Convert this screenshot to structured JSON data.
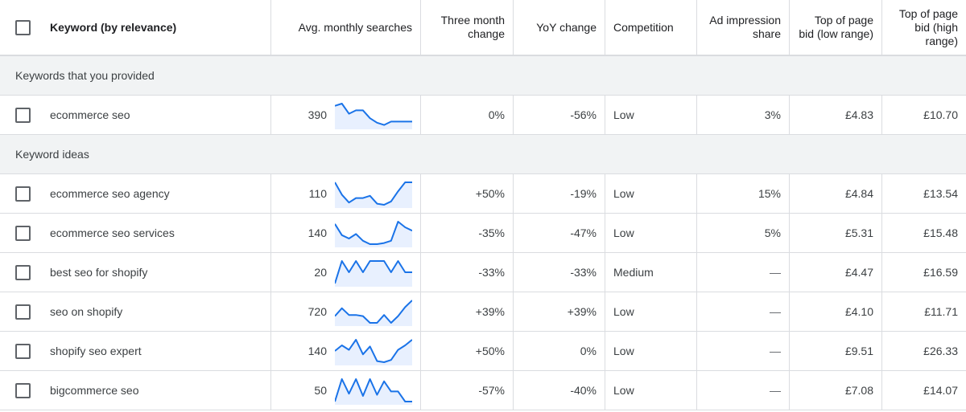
{
  "header": {
    "keyword": "Keyword (by relevance)",
    "avg_monthly": "Avg. monthly searches",
    "three_month": "Three month change",
    "yoy": "YoY change",
    "competition": "Competition",
    "ad_impression": "Ad impression share",
    "bid_low": "Top of page bid (low range)",
    "bid_high": "Top of page bid (high range)"
  },
  "groups": {
    "provided": "Keywords that you provided",
    "ideas": "Keyword ideas"
  },
  "provided_rows": [
    {
      "keyword": "ecommerce seo",
      "avg": "390",
      "three": "0%",
      "yoy": "-56%",
      "comp": "Low",
      "adimp": "3%",
      "low": "£4.83",
      "high": "£10.70",
      "trend": [
        0.9,
        1.0,
        0.55,
        0.7,
        0.7,
        0.35,
        0.15,
        0.05,
        0.2,
        0.2,
        0.2,
        0.2
      ]
    }
  ],
  "idea_rows": [
    {
      "keyword": "ecommerce seo agency",
      "avg": "110",
      "three": "+50%",
      "yoy": "-19%",
      "comp": "Low",
      "adimp": "15%",
      "low": "£4.84",
      "high": "£13.54",
      "trend": [
        1.0,
        0.45,
        0.1,
        0.3,
        0.3,
        0.4,
        0.05,
        0.0,
        0.15,
        0.6,
        1.0,
        1.0
      ]
    },
    {
      "keyword": "ecommerce seo services",
      "avg": "140",
      "three": "-35%",
      "yoy": "-47%",
      "comp": "Low",
      "adimp": "5%",
      "low": "£5.31",
      "high": "£15.48",
      "trend": [
        0.9,
        0.4,
        0.25,
        0.45,
        0.15,
        0.0,
        0.0,
        0.05,
        0.15,
        1.0,
        0.75,
        0.6
      ]
    },
    {
      "keyword": "best seo for shopify",
      "avg": "20",
      "three": "-33%",
      "yoy": "-33%",
      "comp": "Medium",
      "adimp": "—",
      "low": "£4.47",
      "high": "£16.59",
      "trend": [
        0.0,
        1.0,
        0.5,
        1.0,
        0.5,
        1.0,
        1.0,
        1.0,
        0.5,
        1.0,
        0.5,
        0.5
      ]
    },
    {
      "keyword": "seo on shopify",
      "avg": "720",
      "three": "+39%",
      "yoy": "+39%",
      "comp": "Low",
      "adimp": "—",
      "low": "£4.10",
      "high": "£11.71",
      "trend": [
        0.3,
        0.65,
        0.35,
        0.35,
        0.3,
        0.0,
        0.0,
        0.35,
        0.0,
        0.3,
        0.7,
        1.0
      ]
    },
    {
      "keyword": "shopify seo expert",
      "avg": "140",
      "three": "+50%",
      "yoy": "0%",
      "comp": "Low",
      "adimp": "—",
      "low": "£9.51",
      "high": "£26.33",
      "trend": [
        0.5,
        0.75,
        0.55,
        1.0,
        0.35,
        0.7,
        0.05,
        0.0,
        0.1,
        0.55,
        0.75,
        1.0
      ]
    },
    {
      "keyword": "bigcommerce seo",
      "avg": "50",
      "three": "-57%",
      "yoy": "-40%",
      "comp": "Low",
      "adimp": "—",
      "low": "£7.08",
      "high": "£14.07",
      "trend": [
        0.0,
        1.0,
        0.35,
        1.0,
        0.25,
        1.0,
        0.3,
        0.9,
        0.45,
        0.45,
        0.0,
        0.0
      ]
    }
  ],
  "colors": {
    "trend_line": "#1a73e8",
    "trend_fill": "#e8f0fe"
  }
}
